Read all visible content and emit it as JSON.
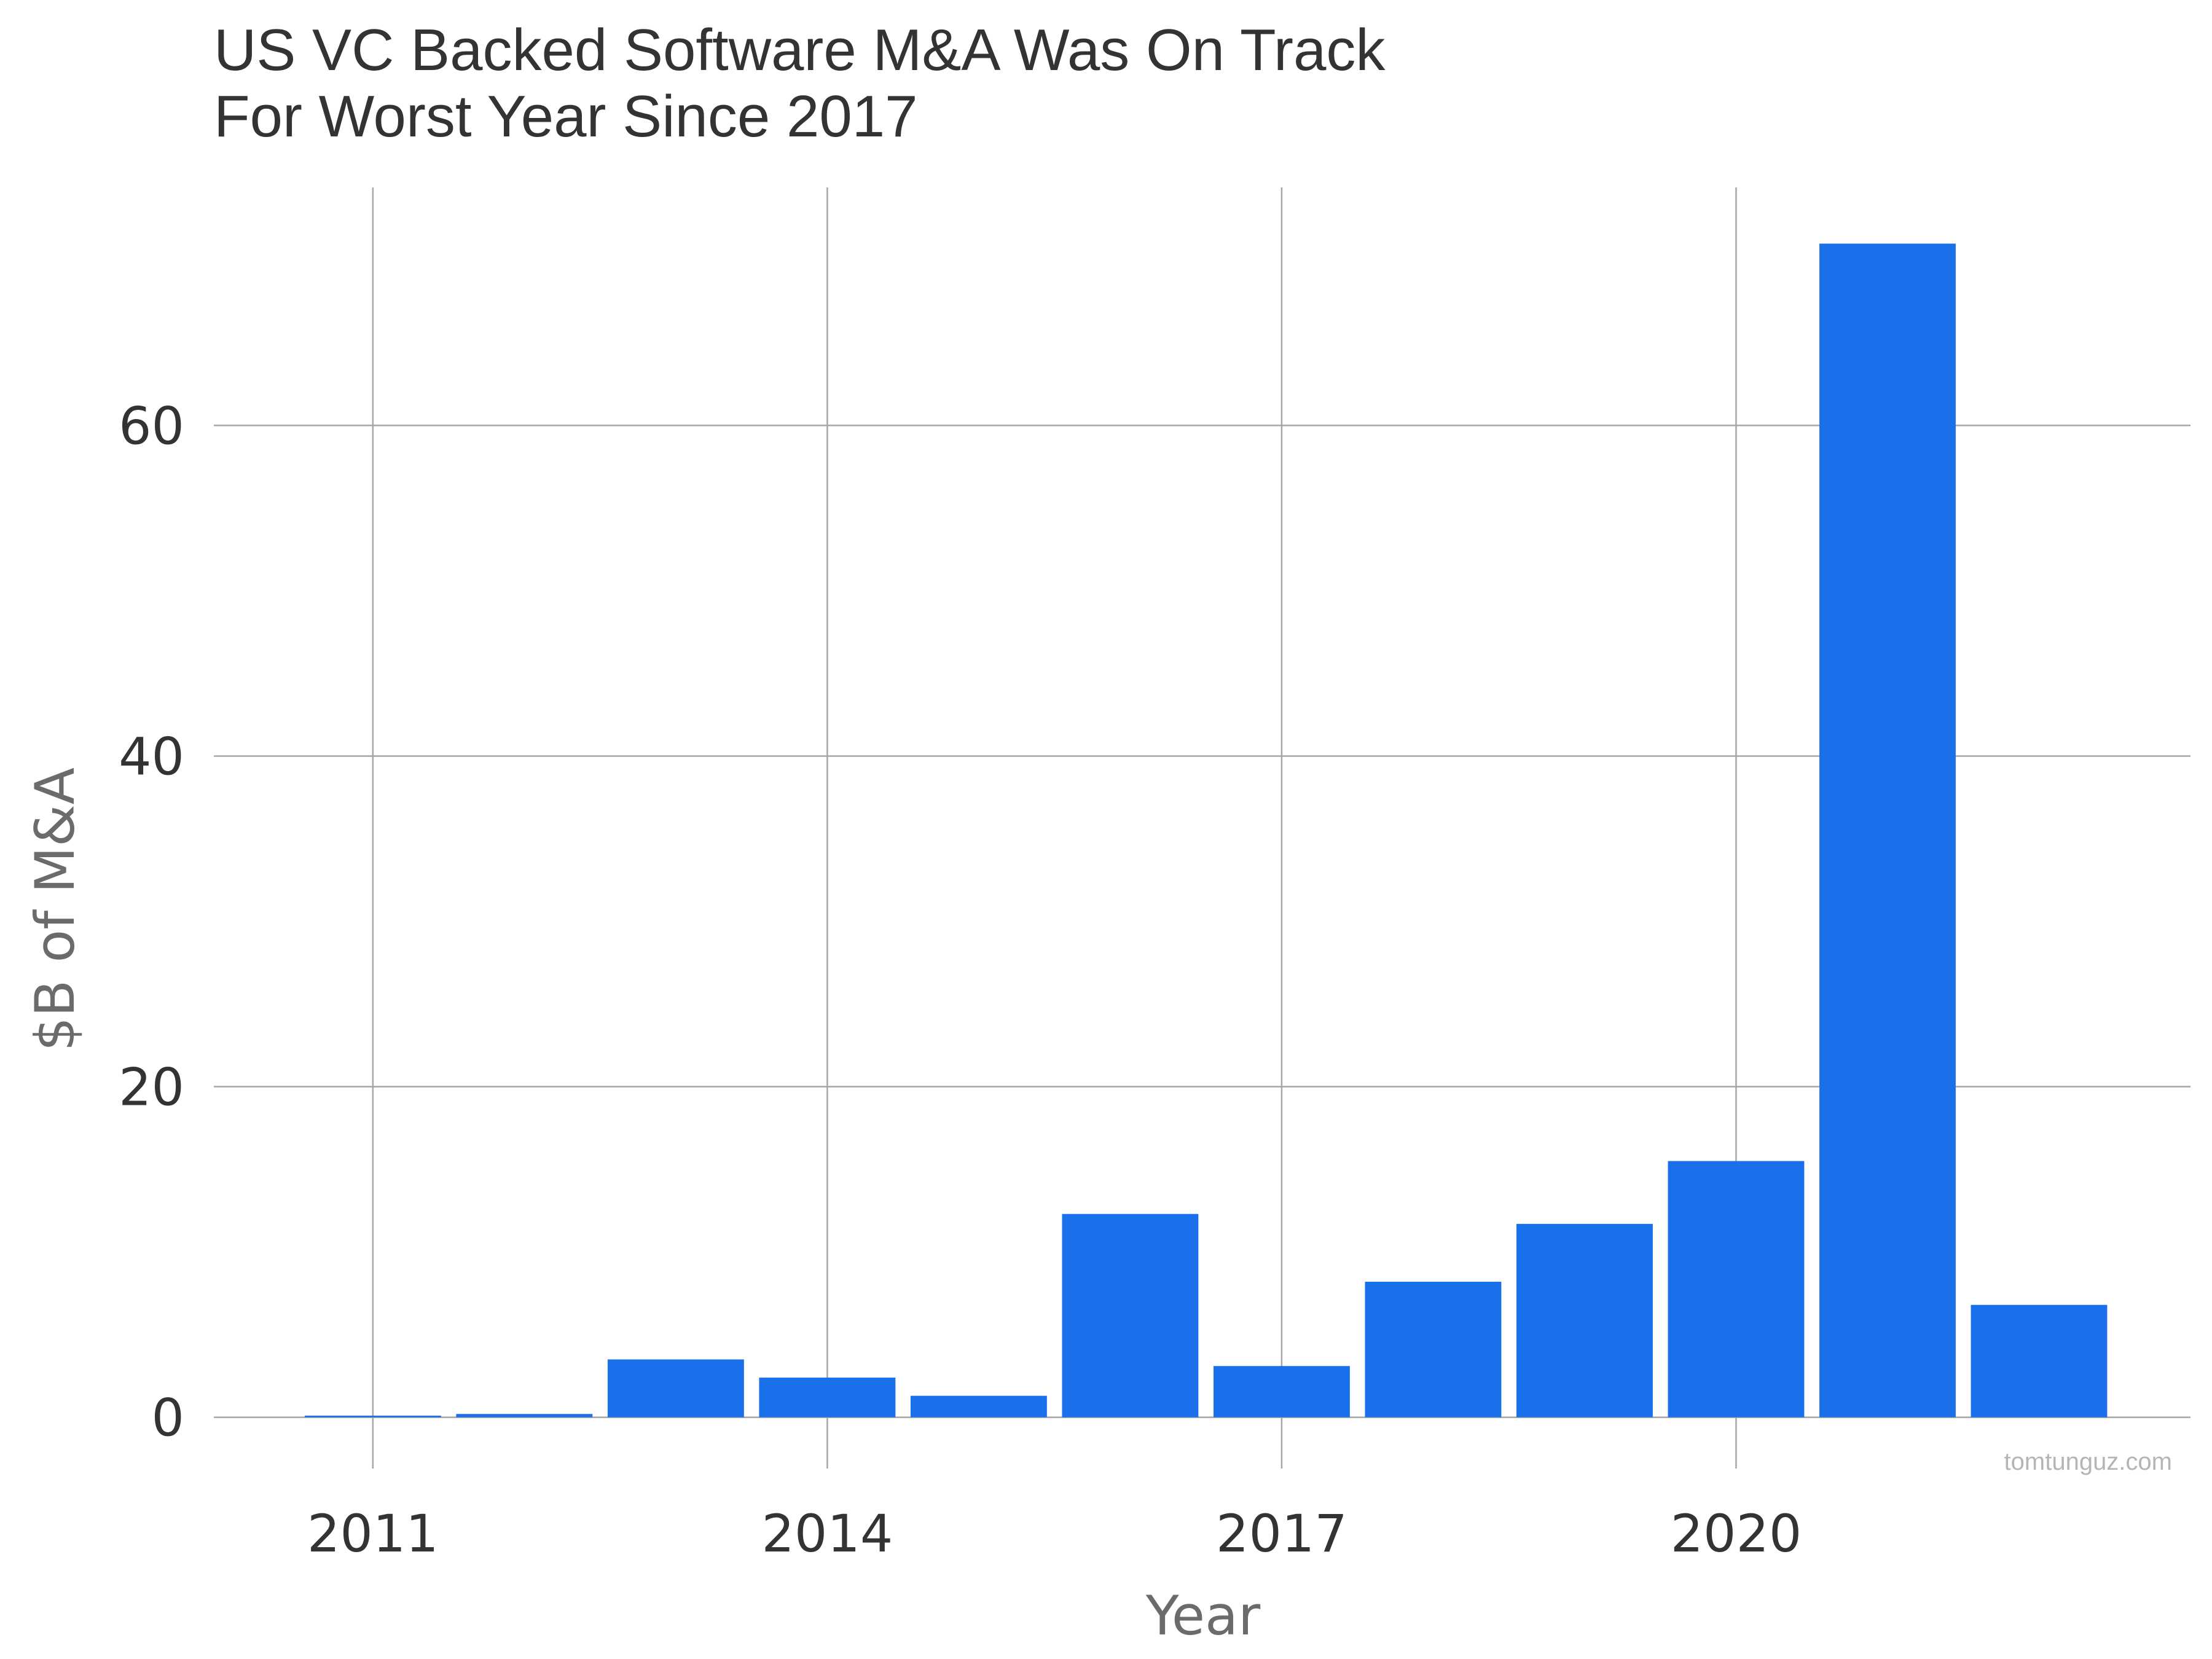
{
  "chart_data": {
    "type": "bar",
    "title_lines": [
      "US VC Backed Software M&A Was On Track",
      "For Worst Year Since 2017"
    ],
    "xlabel": "Year",
    "ylabel": "$B of M&A",
    "categories": [
      2011,
      2012,
      2013,
      2014,
      2015,
      2016,
      2017,
      2018,
      2019,
      2020,
      2021,
      2022
    ],
    "values": [
      0.1,
      0.2,
      3.5,
      2.4,
      1.3,
      12.3,
      3.1,
      8.2,
      11.7,
      15.5,
      71.0,
      6.8
    ],
    "x_ticks": [
      2011,
      2014,
      2017,
      2020
    ],
    "y_ticks": [
      0,
      20,
      40,
      60
    ],
    "xlim": [
      2009.95,
      2023.0
    ],
    "ylim": [
      -3.1,
      74.4
    ],
    "bar_color": "#1a6fea",
    "grid": true,
    "grid_color": "#a6a6a6",
    "legend": "none",
    "watermark": "tomtunguz.com"
  }
}
